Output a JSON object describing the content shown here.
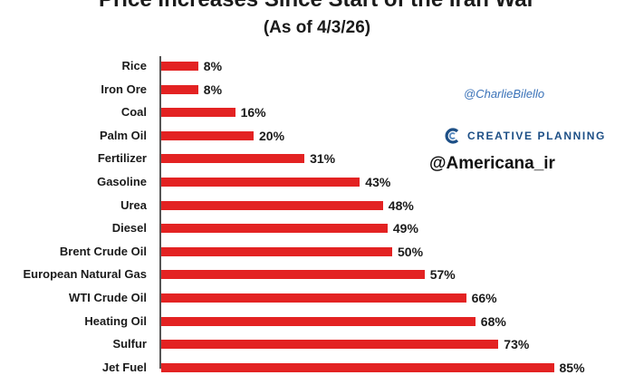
{
  "header": {
    "title": "Price Increases Since Start of the Iran War",
    "subtitle": "(As of 4/3/26)"
  },
  "credits": {
    "handle": "@CharlieBilello",
    "brand": "CREATIVE PLANNING",
    "watermark": "@Americana_ir"
  },
  "colors": {
    "bar": "#e32222",
    "brand": "#1d4f86",
    "handle": "#3a72b8"
  },
  "chart_data": {
    "type": "bar",
    "orientation": "horizontal",
    "title": "Price Increases Since Start of the Iran War",
    "subtitle": "(As of 4/3/26)",
    "categories": [
      "Rice",
      "Iron Ore",
      "Coal",
      "Palm Oil",
      "Fertilizer",
      "Gasoline",
      "Urea",
      "Diesel",
      "Brent Crude Oil",
      "European Natural Gas",
      "WTI Crude Oil",
      "Heating Oil",
      "Sulfur",
      "Jet Fuel"
    ],
    "values": [
      8,
      8,
      16,
      20,
      31,
      43,
      48,
      49,
      50,
      57,
      66,
      68,
      73,
      85
    ],
    "value_labels": [
      "8%",
      "8%",
      "16%",
      "20%",
      "31%",
      "43%",
      "48%",
      "49%",
      "50%",
      "57%",
      "66%",
      "68%",
      "73%",
      "85%"
    ],
    "unit": "%",
    "xlim": [
      0,
      100
    ],
    "grid": false,
    "legend": "none"
  }
}
